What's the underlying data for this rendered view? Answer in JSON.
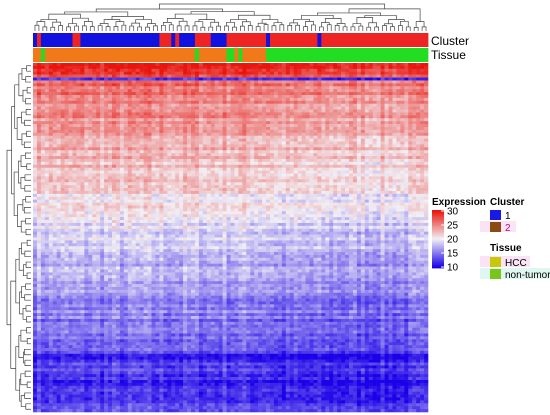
{
  "chart_data": {
    "type": "heatmap",
    "title": "",
    "annotation_tracks": [
      "Cluster",
      "Tissue"
    ],
    "legends": {
      "expression": {
        "title": "Expression",
        "ticks": [
          30,
          25,
          20,
          15,
          10
        ],
        "range": [
          10,
          30
        ],
        "colors": {
          "low": "#1a00e8",
          "mid": "#f2f0f5",
          "high": "#e8150d"
        }
      },
      "cluster": {
        "title": "Cluster",
        "entries": [
          {
            "label": "1",
            "color": "#1919e6"
          },
          {
            "label": "2",
            "color": "#8b4a12"
          }
        ]
      },
      "tissue": {
        "title": "Tissue",
        "entries": [
          {
            "label": "HCC",
            "color": "#c8c80a"
          },
          {
            "label": "non-tumor",
            "color": "#7ac51a"
          }
        ]
      }
    },
    "display_colors": {
      "cluster_1": "#1212e0",
      "cluster_2": "#ee2424",
      "tissue_hcc": "#f07a1a",
      "tissue_non_tumor": "#22dd22"
    },
    "cluster_columns": [
      1,
      2,
      1,
      1,
      1,
      1,
      1,
      1,
      1,
      1,
      2,
      2,
      1,
      1,
      1,
      1,
      1,
      1,
      1,
      1,
      1,
      1,
      1,
      1,
      1,
      1,
      1,
      1,
      1,
      1,
      1,
      1,
      2,
      2,
      2,
      1,
      2,
      1,
      1,
      1,
      1,
      2,
      2,
      2,
      2,
      1,
      1,
      1,
      1,
      2,
      2,
      2,
      2,
      2,
      2,
      2,
      2,
      2,
      2,
      1,
      2,
      2,
      2,
      2,
      2,
      2,
      2,
      2,
      2,
      2,
      2,
      2,
      1,
      2,
      2,
      2,
      2,
      2,
      2,
      2,
      2,
      2,
      2,
      2,
      2,
      2,
      2,
      2,
      2,
      2,
      2,
      2,
      2,
      2,
      2,
      2,
      2,
      2,
      2,
      2
    ],
    "tissue_columns": [
      "HCC",
      "HCC",
      "non-tumor",
      "HCC",
      "HCC",
      "HCC",
      "HCC",
      "HCC",
      "HCC",
      "HCC",
      "HCC",
      "HCC",
      "HCC",
      "HCC",
      "HCC",
      "HCC",
      "HCC",
      "HCC",
      "HCC",
      "HCC",
      "HCC",
      "HCC",
      "HCC",
      "HCC",
      "HCC",
      "HCC",
      "HCC",
      "HCC",
      "HCC",
      "HCC",
      "HCC",
      "HCC",
      "HCC",
      "HCC",
      "HCC",
      "HCC",
      "HCC",
      "HCC",
      "HCC",
      "HCC",
      "HCC",
      "non-tumor",
      "HCC",
      "HCC",
      "HCC",
      "HCC",
      "HCC",
      "HCC",
      "HCC",
      "non-tumor",
      "non-tumor",
      "HCC",
      "non-tumor",
      "HCC",
      "HCC",
      "HCC",
      "HCC",
      "HCC",
      "HCC",
      "non-tumor",
      "non-tumor",
      "non-tumor",
      "non-tumor",
      "non-tumor",
      "non-tumor",
      "non-tumor",
      "non-tumor",
      "non-tumor",
      "non-tumor",
      "non-tumor",
      "non-tumor",
      "non-tumor",
      "non-tumor",
      "non-tumor",
      "non-tumor",
      "non-tumor",
      "non-tumor",
      "non-tumor",
      "non-tumor",
      "non-tumor",
      "non-tumor",
      "non-tumor",
      "non-tumor",
      "non-tumor",
      "non-tumor",
      "non-tumor",
      "non-tumor",
      "non-tumor",
      "non-tumor",
      "non-tumor",
      "non-tumor",
      "non-tumor",
      "non-tumor",
      "non-tumor",
      "non-tumor",
      "non-tumor",
      "non-tumor",
      "non-tumor",
      "non-tumor",
      "non-tumor"
    ],
    "row_profile": {
      "description_of_rows": "approximate expression level per gene row, top to bottom",
      "values": [
        29,
        27,
        26,
        25,
        24.5,
        24,
        23.5,
        23,
        22.5,
        22,
        21.5,
        21,
        20.5,
        20,
        19.5,
        19,
        18.5,
        18,
        17.5,
        17,
        16.5,
        16,
        15.5,
        15,
        14.5,
        14,
        13.5,
        13,
        12.5,
        12,
        11,
        12,
        12.5
      ]
    }
  }
}
